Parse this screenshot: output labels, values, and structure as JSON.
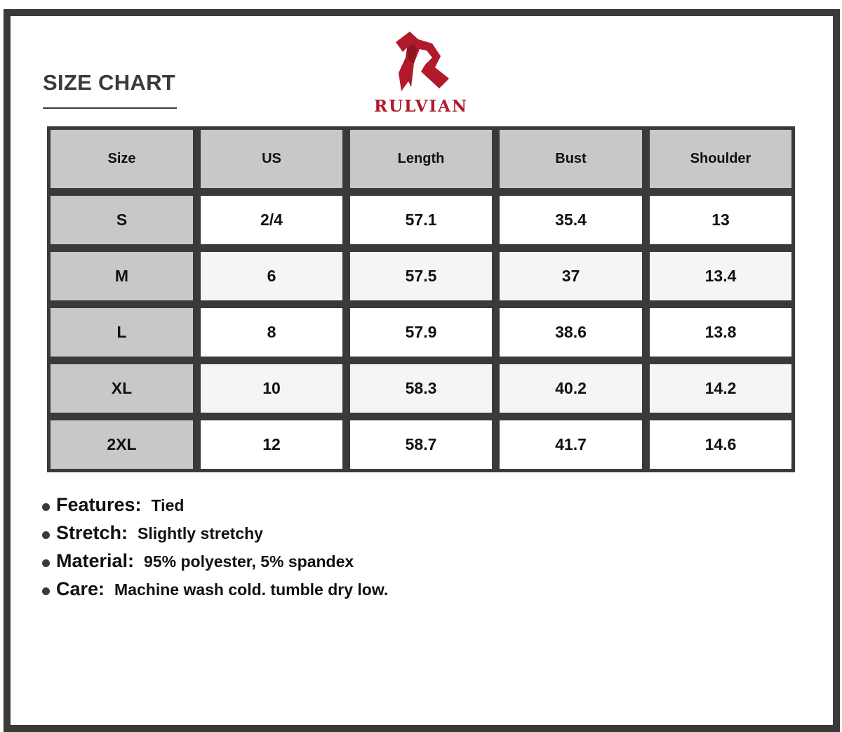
{
  "title": "SIZE CHART",
  "brand": {
    "name": "RULVIAN",
    "color": "#b01a2b"
  },
  "table": {
    "headers": [
      "Size",
      "US",
      "Length",
      "Bust",
      "Shoulder"
    ],
    "rows": [
      [
        "S",
        "2/4",
        "57.1",
        "35.4",
        "13"
      ],
      [
        "M",
        "6",
        "57.5",
        "37",
        "13.4"
      ],
      [
        "L",
        "8",
        "57.9",
        "38.6",
        "13.8"
      ],
      [
        "XL",
        "10",
        "58.3",
        "40.2",
        "14.2"
      ],
      [
        "2XL",
        "12",
        "58.7",
        "41.7",
        "14.6"
      ]
    ]
  },
  "notes": [
    {
      "label": "Features:",
      "value": "Tied"
    },
    {
      "label": "Stretch:",
      "value": "Slightly stretchy"
    },
    {
      "label": "Material:",
      "value": "95% polyester, 5% spandex"
    },
    {
      "label": "Care:",
      "value": "Machine wash cold. tumble dry low."
    }
  ]
}
